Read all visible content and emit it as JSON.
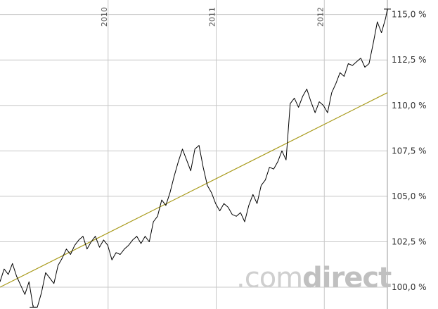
{
  "chart_data": {
    "type": "line",
    "title": "",
    "xlabel": "",
    "ylabel": "",
    "y_unit": "%",
    "ylim": [
      98.8,
      115.8
    ],
    "xlim": [
      "2009-01-01",
      "2012-08-01"
    ],
    "grid": true,
    "legend": "none",
    "y_ticks": [
      {
        "value": 100.0,
        "label": "100,0 %"
      },
      {
        "value": 102.5,
        "label": "102,5 %"
      },
      {
        "value": 105.0,
        "label": "105,0 %"
      },
      {
        "value": 107.5,
        "label": "107,5 %"
      },
      {
        "value": 110.0,
        "label": "110,0 %"
      },
      {
        "value": 112.5,
        "label": "112,5 %"
      },
      {
        "value": 115.0,
        "label": "115,0 %"
      }
    ],
    "x_ticks": [
      {
        "date": "2010-01-01",
        "label": "2010"
      },
      {
        "date": "2011-01-01",
        "label": "2011"
      },
      {
        "date": "2012-01-01",
        "label": "2012"
      }
    ],
    "series": [
      {
        "color": "#000000",
        "x": [
          "2009-01-01",
          "2009-01-15",
          "2009-01-29",
          "2009-02-12",
          "2009-02-26",
          "2009-03-12",
          "2009-03-26",
          "2009-04-09",
          "2009-04-23",
          "2009-05-07",
          "2009-05-21",
          "2009-06-04",
          "2009-06-18",
          "2009-07-02",
          "2009-07-16",
          "2009-07-30",
          "2009-08-13",
          "2009-08-27",
          "2009-09-10",
          "2009-09-24",
          "2009-10-08",
          "2009-10-22",
          "2009-11-05",
          "2009-11-19",
          "2009-12-03",
          "2009-12-17",
          "2009-12-31",
          "2010-01-14",
          "2010-01-28",
          "2010-02-11",
          "2010-02-25",
          "2010-03-11",
          "2010-03-25",
          "2010-04-08",
          "2010-04-22",
          "2010-05-06",
          "2010-05-20",
          "2010-06-03",
          "2010-06-17",
          "2010-07-01",
          "2010-07-15",
          "2010-07-29",
          "2010-08-12",
          "2010-08-26",
          "2010-09-09",
          "2010-09-23",
          "2010-10-07",
          "2010-10-21",
          "2010-11-04",
          "2010-11-18",
          "2010-12-02",
          "2010-12-16",
          "2010-12-30",
          "2011-01-13",
          "2011-01-27",
          "2011-02-10",
          "2011-02-24",
          "2011-03-10",
          "2011-03-24",
          "2011-04-07",
          "2011-04-21",
          "2011-05-05",
          "2011-05-19",
          "2011-06-02",
          "2011-06-16",
          "2011-06-30",
          "2011-07-14",
          "2011-07-28",
          "2011-08-11",
          "2011-08-25",
          "2011-09-08",
          "2011-09-22",
          "2011-10-06",
          "2011-10-20",
          "2011-11-03",
          "2011-11-17",
          "2011-12-01",
          "2011-12-15",
          "2011-12-29",
          "2012-01-12",
          "2012-01-26",
          "2012-02-09",
          "2012-02-23",
          "2012-03-08",
          "2012-03-22",
          "2012-04-05",
          "2012-04-19",
          "2012-05-03",
          "2012-05-17",
          "2012-05-31",
          "2012-06-14",
          "2012-06-28",
          "2012-07-12",
          "2012-07-26",
          "2012-08-01"
        ],
        "values": [
          100.3,
          101.0,
          100.7,
          101.3,
          100.6,
          100.1,
          99.6,
          100.3,
          98.9,
          98.9,
          99.7,
          100.8,
          100.5,
          100.2,
          101.2,
          101.6,
          102.1,
          101.8,
          102.3,
          102.6,
          102.8,
          102.1,
          102.5,
          102.8,
          102.2,
          102.6,
          102.3,
          101.5,
          101.9,
          101.8,
          102.1,
          102.3,
          102.6,
          102.8,
          102.4,
          102.8,
          102.5,
          103.6,
          103.9,
          104.8,
          104.5,
          105.2,
          106.1,
          106.9,
          107.6,
          107.0,
          106.4,
          107.6,
          107.8,
          106.6,
          105.6,
          105.2,
          104.6,
          104.2,
          104.6,
          104.4,
          104.0,
          103.9,
          104.1,
          103.6,
          104.5,
          105.1,
          104.6,
          105.6,
          105.9,
          106.6,
          106.5,
          106.9,
          107.5,
          107.0,
          110.1,
          110.4,
          109.9,
          110.5,
          110.9,
          110.2,
          109.6,
          110.2,
          110.0,
          109.6,
          110.7,
          111.2,
          111.8,
          111.6,
          112.3,
          112.2,
          112.4,
          112.6,
          112.1,
          112.3,
          113.4,
          114.6,
          114.0,
          114.8,
          115.3
        ]
      },
      {
        "color": "#a89a1a",
        "x": [
          "2009-01-01",
          "2012-08-01"
        ],
        "values": [
          100.0,
          110.7
        ]
      }
    ],
    "annotations": [
      {
        "type": "min-marker",
        "date": "2009-04-23",
        "value": 98.9
      },
      {
        "type": "max-marker",
        "date": "2012-08-01",
        "value": 115.3
      }
    ]
  },
  "watermark": {
    "part1": ".com",
    "part2": "direct"
  },
  "colors": {
    "grid": "#c8c8c8",
    "line": "#000000",
    "trend": "#a89a1a",
    "watermark": "#cfcfcf"
  }
}
